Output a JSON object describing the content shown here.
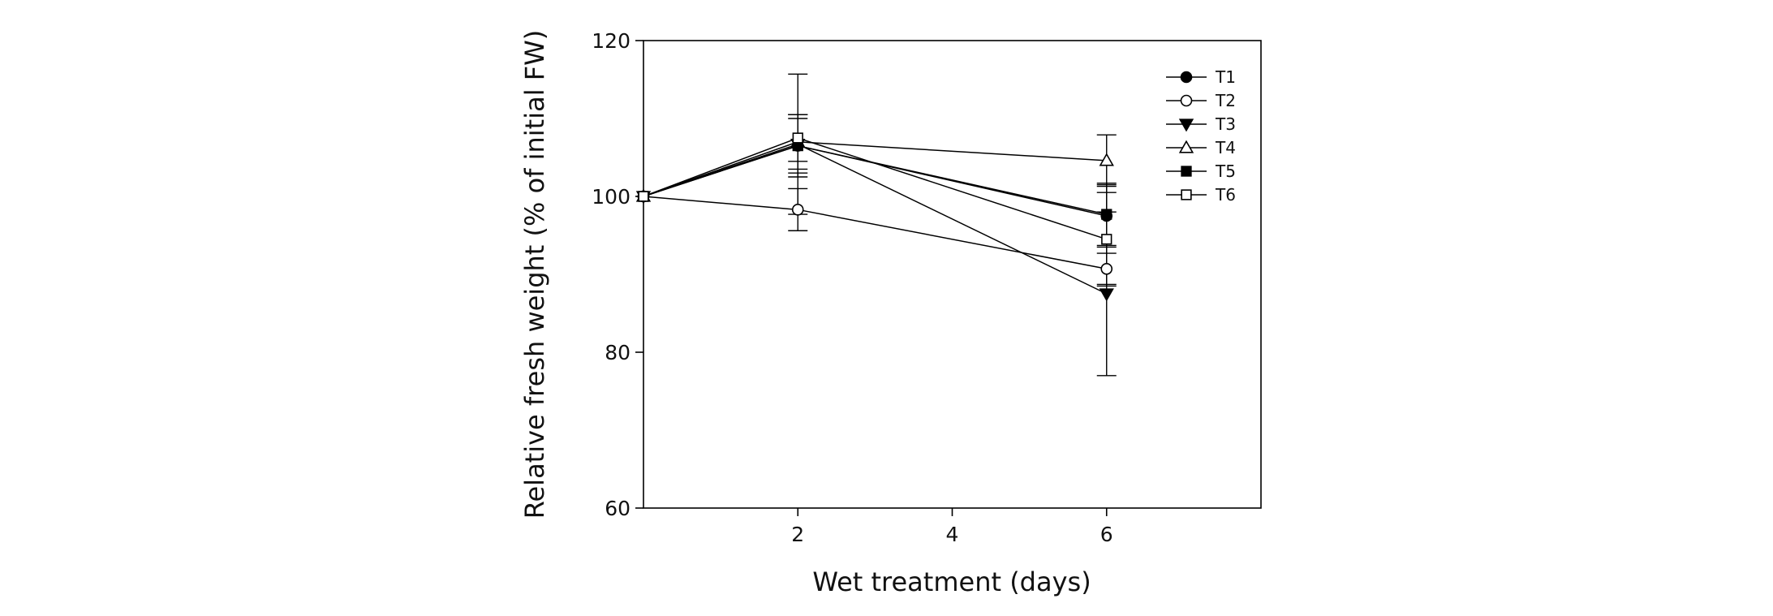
{
  "chart_data": {
    "type": "line",
    "title": "",
    "xlabel": "Wet treatment (days)",
    "ylabel": "Relative fresh weight (% of initial FW)",
    "xlim": [
      0,
      8
    ],
    "ylim": [
      60,
      120
    ],
    "xticks": [
      2,
      4,
      6
    ],
    "yticks": [
      60,
      80,
      100,
      120
    ],
    "x": [
      0,
      2,
      6
    ],
    "legend_position": "top-right",
    "series": [
      {
        "name": "T1",
        "marker": "circle",
        "filled": true,
        "values": [
          100,
          106.5,
          97.5
        ],
        "errors": [
          0,
          4.0,
          4.0
        ]
      },
      {
        "name": "T2",
        "marker": "circle",
        "filled": false,
        "values": [
          100,
          98.3,
          90.7
        ],
        "errors": [
          0,
          2.7,
          2.0
        ]
      },
      {
        "name": "T3",
        "marker": "triangle-down",
        "filled": true,
        "values": [
          100,
          106.7,
          87.5
        ],
        "errors": [
          0,
          9.0,
          10.5
        ]
      },
      {
        "name": "T4",
        "marker": "triangle-up",
        "filled": false,
        "values": [
          100,
          107.0,
          104.6
        ],
        "errors": [
          0,
          3.5,
          3.3
        ]
      },
      {
        "name": "T5",
        "marker": "square",
        "filled": true,
        "values": [
          100,
          106.5,
          97.7
        ],
        "errors": [
          0,
          3.5,
          4.0
        ]
      },
      {
        "name": "T6",
        "marker": "square",
        "filled": false,
        "values": [
          100,
          107.5,
          94.5
        ],
        "errors": [
          0,
          3.0,
          6.0
        ]
      }
    ]
  }
}
